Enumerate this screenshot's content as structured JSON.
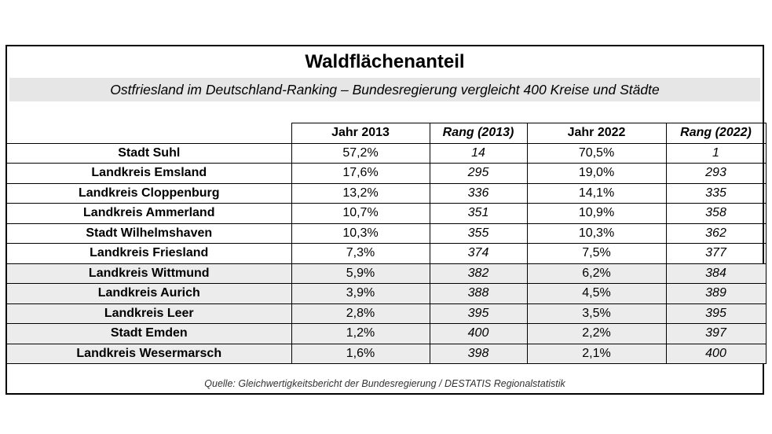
{
  "title": "Waldflächenanteil",
  "subtitle": "Ostfriesland im Deutschland-Ranking – Bundesregierung vergleicht 400 Kreise und Städte",
  "headers": [
    "",
    "Jahr 2013",
    "Rang (2013)",
    "Jahr 2022",
    "Rang (2022)"
  ],
  "rows": [
    {
      "name": "Stadt Suhl",
      "share2013": "57,2%",
      "rank2013": "14",
      "share2022": "70,5%",
      "rank2022": "1"
    },
    {
      "name": "Landkreis Emsland",
      "share2013": "17,6%",
      "rank2013": "295",
      "share2022": "19,0%",
      "rank2022": "293"
    },
    {
      "name": "Landkreis Cloppenburg",
      "share2013": "13,2%",
      "rank2013": "336",
      "share2022": "14,1%",
      "rank2022": "335"
    },
    {
      "name": "Landkreis Ammerland",
      "share2013": "10,7%",
      "rank2013": "351",
      "share2022": "10,9%",
      "rank2022": "358"
    },
    {
      "name": "Stadt Wilhelmshaven",
      "share2013": "10,3%",
      "rank2013": "355",
      "share2022": "10,3%",
      "rank2022": "362"
    },
    {
      "name": "Landkreis Friesland",
      "share2013": "7,3%",
      "rank2013": "374",
      "share2022": "7,5%",
      "rank2022": "377"
    },
    {
      "name": "Landkreis Wittmund",
      "share2013": "5,9%",
      "rank2013": "382",
      "share2022": "6,2%",
      "rank2022": "384"
    },
    {
      "name": "Landkreis Aurich",
      "share2013": "3,9%",
      "rank2013": "388",
      "share2022": "4,5%",
      "rank2022": "389"
    },
    {
      "name": "Landkreis Leer",
      "share2013": "2,8%",
      "rank2013": "395",
      "share2022": "3,5%",
      "rank2022": "395"
    },
    {
      "name": "Stadt Emden",
      "share2013": "1,2%",
      "rank2013": "400",
      "share2022": "2,2%",
      "rank2022": "397"
    },
    {
      "name": "Landkreis Wesermarsch",
      "share2013": "1,6%",
      "rank2013": "398",
      "share2022": "2,1%",
      "rank2022": "400"
    }
  ],
  "shaded_rows": [
    6,
    7,
    8,
    9,
    10
  ],
  "shade_color": "#ececec",
  "source": "Quelle: Gleichwertigkeitsbericht der Bundesregierung / DESTATIS Regionalstatistik"
}
